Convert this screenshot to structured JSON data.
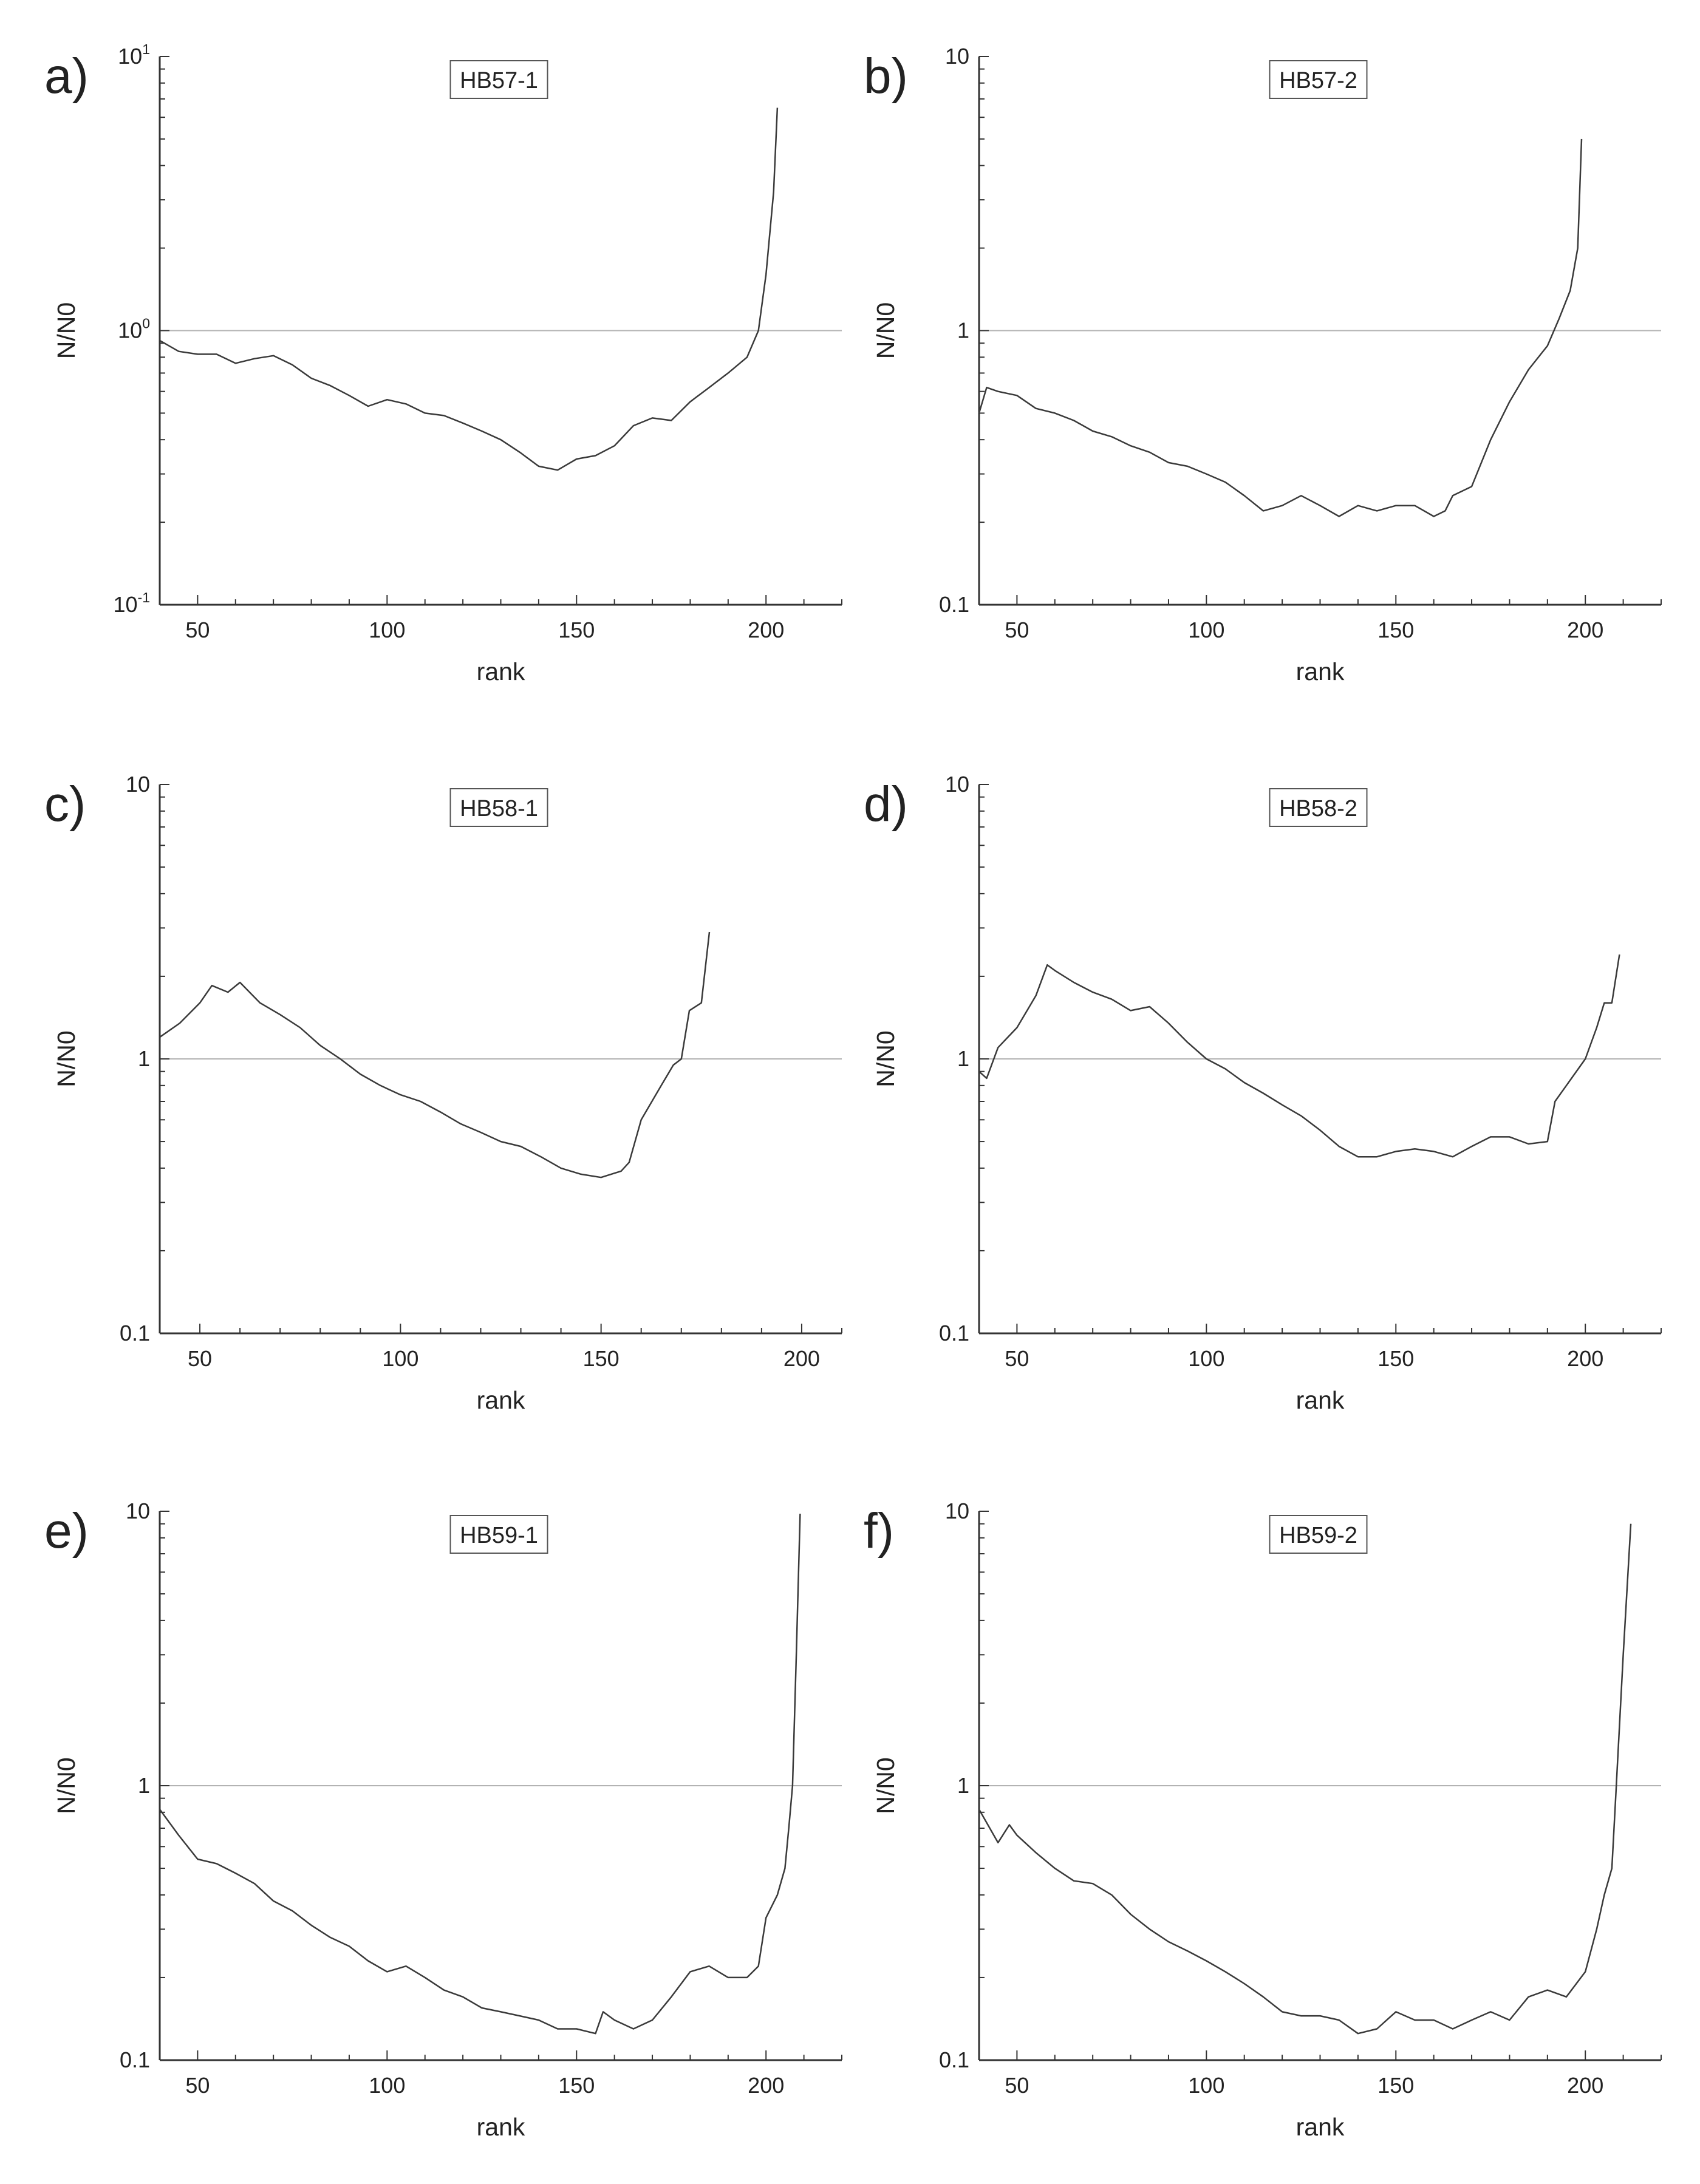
{
  "chart_data": [
    {
      "panel": "a)",
      "title": "HB57-1",
      "type": "line",
      "xlabel": "rank",
      "ylabel": "N/N0",
      "yscale": "log",
      "xlim": [
        40,
        220
      ],
      "ylim": [
        0.1,
        10
      ],
      "xticks": [
        "50",
        "100",
        "150",
        "200"
      ],
      "yticks": [
        {
          "base": "10",
          "exp": "1"
        },
        {
          "base": "10",
          "exp": "0"
        },
        {
          "base": "10",
          "exp": "-1"
        }
      ],
      "reference_line": 1,
      "series": [
        {
          "x": [
            40,
            45,
            50,
            55,
            60,
            65,
            70,
            75,
            80,
            85,
            90,
            95,
            100,
            105,
            110,
            115,
            120,
            125,
            130,
            135,
            140,
            145,
            150,
            155,
            160,
            165,
            170,
            175,
            180,
            185,
            190,
            195,
            198,
            200,
            202,
            203
          ],
          "y": [
            0.92,
            0.84,
            0.82,
            0.82,
            0.76,
            0.79,
            0.81,
            0.75,
            0.67,
            0.63,
            0.58,
            0.53,
            0.56,
            0.54,
            0.5,
            0.49,
            0.46,
            0.43,
            0.4,
            0.36,
            0.32,
            0.31,
            0.34,
            0.35,
            0.38,
            0.45,
            0.48,
            0.47,
            0.55,
            0.62,
            0.7,
            0.8,
            1.0,
            1.6,
            3.2,
            6.5
          ]
        }
      ]
    },
    {
      "panel": "b)",
      "title": "HB57-2",
      "type": "line",
      "xlabel": "rank",
      "ylabel": "N/N0",
      "yscale": "log",
      "xlim": [
        40,
        220
      ],
      "ylim": [
        0.1,
        10
      ],
      "xticks": [
        "50",
        "100",
        "150",
        "200"
      ],
      "yticks": [
        {
          "base": "10",
          "exp": ""
        },
        {
          "base": "1",
          "exp": ""
        },
        {
          "base": "0.1",
          "exp": ""
        }
      ],
      "reference_line": 1,
      "series": [
        {
          "x": [
            40,
            42,
            45,
            50,
            55,
            60,
            65,
            70,
            75,
            80,
            85,
            90,
            95,
            100,
            105,
            110,
            115,
            120,
            125,
            130,
            135,
            140,
            145,
            150,
            155,
            160,
            163,
            165,
            170,
            175,
            180,
            185,
            190,
            193,
            196,
            198,
            199
          ],
          "y": [
            0.5,
            0.62,
            0.6,
            0.58,
            0.52,
            0.5,
            0.47,
            0.43,
            0.41,
            0.38,
            0.36,
            0.33,
            0.32,
            0.3,
            0.28,
            0.25,
            0.22,
            0.23,
            0.25,
            0.23,
            0.21,
            0.23,
            0.22,
            0.23,
            0.23,
            0.21,
            0.22,
            0.25,
            0.27,
            0.4,
            0.55,
            0.72,
            0.88,
            1.1,
            1.4,
            2.0,
            5.0
          ]
        }
      ]
    },
    {
      "panel": "c)",
      "title": "HB58-1",
      "type": "line",
      "xlabel": "rank",
      "ylabel": "N/N0",
      "yscale": "log",
      "xlim": [
        40,
        210
      ],
      "ylim": [
        0.1,
        10
      ],
      "xticks": [
        "50",
        "100",
        "150",
        "200"
      ],
      "yticks": [
        {
          "base": "10",
          "exp": ""
        },
        {
          "base": "1",
          "exp": ""
        },
        {
          "base": "0.1",
          "exp": ""
        }
      ],
      "reference_line": 1,
      "series": [
        {
          "x": [
            40,
            45,
            50,
            53,
            57,
            60,
            65,
            70,
            75,
            80,
            85,
            90,
            95,
            100,
            105,
            110,
            115,
            120,
            125,
            130,
            135,
            140,
            145,
            150,
            155,
            157,
            160,
            165,
            168,
            170,
            172,
            175,
            177
          ],
          "y": [
            1.2,
            1.35,
            1.6,
            1.85,
            1.75,
            1.9,
            1.6,
            1.45,
            1.3,
            1.12,
            1.0,
            0.88,
            0.8,
            0.74,
            0.7,
            0.64,
            0.58,
            0.54,
            0.5,
            0.48,
            0.44,
            0.4,
            0.38,
            0.37,
            0.39,
            0.42,
            0.6,
            0.8,
            0.95,
            1.0,
            1.5,
            1.6,
            2.9
          ]
        }
      ]
    },
    {
      "panel": "d)",
      "title": "HB58-2",
      "type": "line",
      "xlabel": "rank",
      "ylabel": "N/N0",
      "yscale": "log",
      "xlim": [
        40,
        220
      ],
      "ylim": [
        0.1,
        10
      ],
      "xticks": [
        "50",
        "100",
        "150",
        "200"
      ],
      "yticks": [
        {
          "base": "10",
          "exp": ""
        },
        {
          "base": "1",
          "exp": ""
        },
        {
          "base": "0.1",
          "exp": ""
        }
      ],
      "reference_line": 1,
      "series": [
        {
          "x": [
            40,
            42,
            45,
            50,
            55,
            58,
            60,
            65,
            70,
            75,
            80,
            85,
            90,
            95,
            100,
            105,
            110,
            115,
            120,
            125,
            130,
            135,
            140,
            145,
            150,
            155,
            160,
            165,
            170,
            175,
            180,
            185,
            190,
            192,
            195,
            200,
            203,
            205,
            207,
            209
          ],
          "y": [
            0.9,
            0.85,
            1.1,
            1.3,
            1.7,
            2.2,
            2.1,
            1.9,
            1.75,
            1.65,
            1.5,
            1.55,
            1.35,
            1.15,
            1.0,
            0.92,
            0.82,
            0.75,
            0.68,
            0.62,
            0.55,
            0.48,
            0.44,
            0.44,
            0.46,
            0.47,
            0.46,
            0.44,
            0.48,
            0.52,
            0.52,
            0.49,
            0.5,
            0.7,
            0.8,
            1.0,
            1.3,
            1.6,
            1.6,
            2.4
          ]
        }
      ]
    },
    {
      "panel": "e)",
      "title": "HB59-1",
      "type": "line",
      "xlabel": "rank",
      "ylabel": "N/N0",
      "yscale": "log",
      "xlim": [
        40,
        220
      ],
      "ylim": [
        0.1,
        10
      ],
      "xticks": [
        "50",
        "100",
        "150",
        "200"
      ],
      "yticks": [
        {
          "base": "10",
          "exp": ""
        },
        {
          "base": "1",
          "exp": ""
        },
        {
          "base": "0.1",
          "exp": ""
        }
      ],
      "reference_line": 1,
      "series": [
        {
          "x": [
            40,
            45,
            50,
            55,
            60,
            65,
            70,
            75,
            80,
            85,
            90,
            95,
            100,
            105,
            110,
            115,
            120,
            125,
            130,
            135,
            140,
            145,
            150,
            155,
            157,
            160,
            165,
            170,
            175,
            180,
            185,
            190,
            195,
            198,
            200,
            203,
            205,
            206,
            207,
            208,
            209
          ],
          "y": [
            0.82,
            0.66,
            0.54,
            0.52,
            0.48,
            0.44,
            0.38,
            0.35,
            0.31,
            0.28,
            0.26,
            0.23,
            0.21,
            0.22,
            0.2,
            0.18,
            0.17,
            0.155,
            0.15,
            0.145,
            0.14,
            0.13,
            0.13,
            0.125,
            0.15,
            0.14,
            0.13,
            0.14,
            0.17,
            0.21,
            0.22,
            0.2,
            0.2,
            0.22,
            0.33,
            0.4,
            0.5,
            0.7,
            1.0,
            3.0,
            9.8
          ]
        }
      ]
    },
    {
      "panel": "f)",
      "title": "HB59-2",
      "type": "line",
      "xlabel": "rank",
      "ylabel": "N/N0",
      "yscale": "log",
      "xlim": [
        40,
        220
      ],
      "ylim": [
        0.1,
        10
      ],
      "xticks": [
        "50",
        "100",
        "150",
        "200"
      ],
      "yticks": [
        {
          "base": "10",
          "exp": ""
        },
        {
          "base": "1",
          "exp": ""
        },
        {
          "base": "0.1",
          "exp": ""
        }
      ],
      "reference_line": 1,
      "series": [
        {
          "x": [
            40,
            45,
            48,
            50,
            55,
            60,
            65,
            70,
            75,
            80,
            85,
            90,
            95,
            100,
            105,
            110,
            115,
            120,
            125,
            130,
            135,
            140,
            145,
            150,
            155,
            160,
            165,
            170,
            175,
            180,
            185,
            190,
            195,
            200,
            203,
            205,
            207,
            208,
            210,
            212
          ],
          "y": [
            0.82,
            0.62,
            0.72,
            0.66,
            0.57,
            0.5,
            0.45,
            0.44,
            0.4,
            0.34,
            0.3,
            0.27,
            0.25,
            0.23,
            0.21,
            0.19,
            0.17,
            0.15,
            0.145,
            0.145,
            0.14,
            0.125,
            0.13,
            0.15,
            0.14,
            0.14,
            0.13,
            0.14,
            0.15,
            0.14,
            0.17,
            0.18,
            0.17,
            0.21,
            0.3,
            0.4,
            0.5,
            0.9,
            3.0,
            9.0
          ]
        }
      ]
    }
  ]
}
